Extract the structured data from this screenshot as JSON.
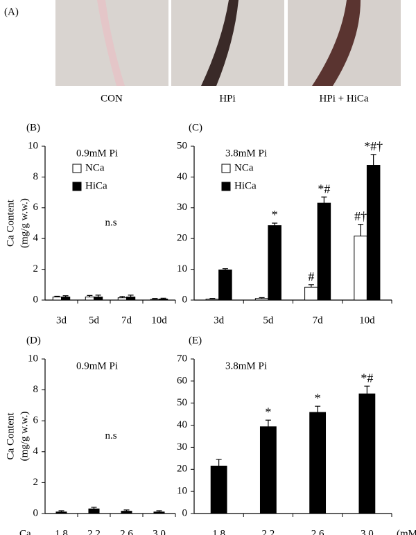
{
  "panel_a": {
    "label": "(A)",
    "captions": [
      "CON",
      "HPi",
      "HPi + HiCa"
    ]
  },
  "chart_data": [
    {
      "type": "bar",
      "panel": "(B)",
      "subtitle": "0.9mM Pi",
      "annotation": "n.s",
      "ylabel": [
        "Ca Content",
        "(mg/g w.w.)"
      ],
      "categories": [
        "3d",
        "5d",
        "7d",
        "10d"
      ],
      "ylim": [
        0,
        10
      ],
      "yticks": [
        0,
        2,
        4,
        6,
        8,
        10
      ],
      "series": [
        {
          "name": "NCa",
          "color": "#ffffff",
          "values": [
            0.2,
            0.2,
            0.15,
            0.05
          ],
          "errors": [
            0.05,
            0.1,
            0.08,
            0.05
          ]
        },
        {
          "name": "HiCa",
          "color": "#000000",
          "values": [
            0.2,
            0.2,
            0.2,
            0.07
          ],
          "errors": [
            0.08,
            0.12,
            0.12,
            0.05
          ]
        }
      ]
    },
    {
      "type": "bar",
      "panel": "(C)",
      "subtitle": "3.8mM Pi",
      "categories": [
        "3d",
        "5d",
        "7d",
        "10d"
      ],
      "ylim": [
        0,
        50
      ],
      "yticks": [
        0,
        10,
        20,
        30,
        40,
        50
      ],
      "series": [
        {
          "name": "NCa",
          "color": "#ffffff",
          "values": [
            0.3,
            0.5,
            4.2,
            20.8
          ],
          "errors": [
            0.2,
            0.3,
            0.8,
            3.8
          ],
          "annotations": [
            null,
            null,
            "#",
            "#†"
          ]
        },
        {
          "name": "HiCa",
          "color": "#000000",
          "values": [
            9.8,
            24.2,
            31.5,
            43.8
          ],
          "errors": [
            0.4,
            0.8,
            2.0,
            3.5
          ],
          "annotations": [
            null,
            "*",
            "*#",
            "*#†"
          ]
        }
      ]
    },
    {
      "type": "bar",
      "panel": "(D)",
      "subtitle": "0.9mM Pi",
      "annotation": "n.s",
      "ylabel": [
        "Ca Content",
        "(mg/g w.w.)"
      ],
      "xlabel": "Ca",
      "categories": [
        "1.8",
        "2.2",
        "2.6",
        "3.0"
      ],
      "ylim": [
        0,
        10
      ],
      "yticks": [
        0,
        2,
        4,
        6,
        8,
        10
      ],
      "series": [
        {
          "color": "#000000",
          "values": [
            0.1,
            0.3,
            0.15,
            0.1
          ],
          "errors": [
            0.08,
            0.1,
            0.08,
            0.08
          ]
        }
      ]
    },
    {
      "type": "bar",
      "panel": "(E)",
      "subtitle": "3.8mM Pi",
      "xunit": "(mM)",
      "categories": [
        "1.8",
        "2.2",
        "2.6",
        "3.0"
      ],
      "ylim": [
        0,
        70
      ],
      "yticks": [
        0,
        10,
        20,
        30,
        40,
        50,
        60,
        70
      ],
      "series": [
        {
          "color": "#000000",
          "values": [
            21.5,
            39.3,
            45.8,
            54.2
          ],
          "errors": [
            3.0,
            3.0,
            2.8,
            3.5
          ],
          "annotations": [
            null,
            "*",
            "*",
            "*#"
          ]
        }
      ]
    }
  ]
}
